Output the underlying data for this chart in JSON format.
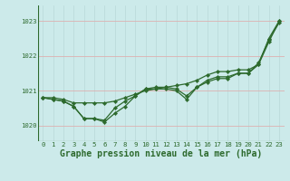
{
  "xlabel_label": "Graphe pression niveau de la mer (hPa)",
  "x": [
    0,
    1,
    2,
    3,
    4,
    5,
    6,
    7,
    8,
    9,
    10,
    11,
    12,
    13,
    14,
    15,
    16,
    17,
    18,
    19,
    20,
    21,
    22,
    23
  ],
  "line1": [
    1020.8,
    1020.8,
    1020.75,
    1020.65,
    1020.65,
    1020.65,
    1020.65,
    1020.7,
    1020.8,
    1020.9,
    1021.0,
    1021.05,
    1021.1,
    1021.15,
    1021.2,
    1021.3,
    1021.45,
    1021.55,
    1021.55,
    1021.6,
    1021.6,
    1021.75,
    1022.5,
    1023.0
  ],
  "line2": [
    1020.8,
    1020.75,
    1020.7,
    1020.55,
    1020.2,
    1020.2,
    1020.15,
    1020.5,
    1020.7,
    1020.85,
    1021.05,
    1021.1,
    1021.1,
    1021.05,
    1020.85,
    1021.1,
    1021.3,
    1021.4,
    1021.4,
    1021.5,
    1021.5,
    1021.8,
    1022.45,
    1022.95
  ],
  "line3": [
    1020.8,
    1020.75,
    1020.7,
    1020.55,
    1020.2,
    1020.2,
    1020.1,
    1020.35,
    1020.55,
    1020.85,
    1021.05,
    1021.05,
    1021.05,
    1021.0,
    1020.75,
    1021.1,
    1021.25,
    1021.35,
    1021.35,
    1021.5,
    1021.5,
    1021.75,
    1022.4,
    1023.0
  ],
  "line_color": "#2d6a2d",
  "bg_color": "#cceaea",
  "grid_color_h": "#ddb0b0",
  "grid_color_v": "#b8d8d8",
  "ylim": [
    1019.55,
    1023.45
  ],
  "yticks": [
    1020,
    1021,
    1022,
    1023
  ],
  "xticks": [
    0,
    1,
    2,
    3,
    4,
    5,
    6,
    7,
    8,
    9,
    10,
    11,
    12,
    13,
    14,
    15,
    16,
    17,
    18,
    19,
    20,
    21,
    22,
    23
  ],
  "tick_fontsize": 5.2,
  "label_fontsize": 7.0,
  "marker": "D",
  "markersize": 2.2,
  "linewidth": 0.9
}
